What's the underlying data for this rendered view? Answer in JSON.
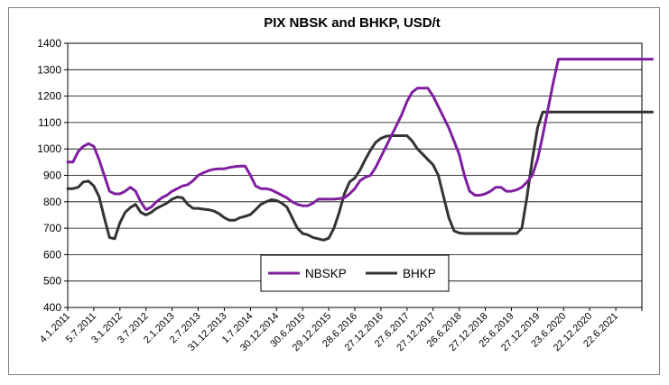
{
  "chart_data": {
    "type": "line",
    "title": "PIX NBSK and BHKP, USD/t",
    "xlabel": "",
    "ylabel": "",
    "ylim": [
      400,
      1400
    ],
    "yticks": [
      400,
      500,
      600,
      700,
      800,
      900,
      1000,
      1100,
      1200,
      1300,
      1400
    ],
    "grid": true,
    "legend_position": "center-left",
    "x_tick_labels": [
      "4.1.2011",
      "5.7.2011",
      "3.1.2012",
      "3.7.2012",
      "2.1.2013",
      "2.7.2013",
      "31.12.2013",
      "1.7.2014",
      "30.12.2014",
      "30.6.2015",
      "29.12.2015",
      "28.6.2016",
      "27.12.2016",
      "27.6.2017",
      "27.12.2017",
      "26.6.2018",
      "27.12.2018",
      "25.6.2019",
      "27.12.2019",
      "23.6.2020",
      "22.12.2020",
      "22.6.2021"
    ],
    "x": [
      0,
      0.2,
      0.4,
      0.6,
      0.8,
      1.0,
      1.2,
      1.4,
      1.6,
      1.8,
      2.0,
      2.2,
      2.4,
      2.6,
      2.8,
      3.0,
      3.2,
      3.4,
      3.6,
      3.8,
      4.0,
      4.2,
      4.4,
      4.6,
      4.8,
      5.0,
      5.2,
      5.4,
      5.6,
      5.8,
      6.0,
      6.2,
      6.4,
      6.6,
      6.8,
      7.0,
      7.2,
      7.4,
      7.6,
      7.8,
      8.0,
      8.2,
      8.4,
      8.6,
      8.8,
      9.0,
      9.2,
      9.4,
      9.6,
      9.8,
      10.0,
      10.2,
      10.4,
      10.6,
      10.8,
      11.0,
      11.2,
      11.4,
      11.6,
      11.8,
      12.0,
      12.2,
      12.4,
      12.6,
      12.8,
      13.0,
      13.2,
      13.4,
      13.6,
      13.8,
      14.0,
      14.2,
      14.4,
      14.6,
      14.8,
      15.0,
      15.2,
      15.4,
      15.6,
      15.8,
      16.0,
      16.2,
      16.4,
      16.6,
      16.8,
      17.0,
      17.2,
      17.4,
      17.6,
      17.8,
      18.0,
      18.2,
      18.4,
      18.6,
      18.8,
      19.0,
      19.2,
      19.4,
      19.6,
      19.8,
      20.0,
      20.2,
      20.4,
      20.6,
      20.8,
      21.0,
      21.2,
      21.4,
      21.6,
      21.8,
      22.0,
      22.2,
      22.4
    ],
    "series": [
      {
        "name": "NBSKP",
        "color": "#7f1fa0",
        "values": [
          950,
          950,
          990,
          1010,
          1020,
          1010,
          960,
          900,
          840,
          830,
          830,
          840,
          855,
          840,
          800,
          770,
          780,
          800,
          815,
          825,
          840,
          850,
          860,
          865,
          880,
          900,
          910,
          918,
          923,
          925,
          925,
          930,
          933,
          935,
          935,
          900,
          860,
          850,
          850,
          845,
          835,
          825,
          815,
          800,
          790,
          785,
          785,
          795,
          810,
          810,
          810,
          810,
          812,
          815,
          830,
          850,
          880,
          893,
          900,
          930,
          970,
          1010,
          1050,
          1090,
          1130,
          1180,
          1215,
          1230,
          1230,
          1230,
          1200,
          1160,
          1120,
          1080,
          1030,
          980,
          900,
          840,
          825,
          825,
          830,
          840,
          855,
          855,
          840,
          840,
          845,
          855,
          875,
          900,
          960,
          1050,
          1150,
          1250,
          1340,
          1340,
          1340,
          1340,
          1340,
          1340,
          1340,
          1340,
          1340,
          1340,
          1340,
          1340,
          1340,
          1340,
          1340,
          1340,
          1340,
          1340,
          1340
        ]
      },
      {
        "name": "BHKP",
        "color": "#333333",
        "values": [
          850,
          850,
          855,
          875,
          878,
          860,
          820,
          740,
          665,
          660,
          720,
          760,
          778,
          790,
          760,
          750,
          760,
          775,
          785,
          795,
          810,
          818,
          815,
          790,
          775,
          775,
          772,
          770,
          765,
          755,
          740,
          730,
          730,
          740,
          745,
          752,
          770,
          790,
          800,
          808,
          805,
          795,
          780,
          740,
          700,
          680,
          675,
          665,
          660,
          655,
          662,
          700,
          760,
          830,
          875,
          890,
          920,
          960,
          995,
          1025,
          1040,
          1048,
          1050,
          1050,
          1050,
          1050,
          1030,
          1000,
          980,
          960,
          940,
          900,
          820,
          740,
          690,
          682,
          680,
          680,
          680,
          680,
          680,
          680,
          680,
          680,
          680,
          680,
          680,
          700,
          820,
          960,
          1080,
          1140,
          1140,
          1140,
          1140,
          1140,
          1140,
          1140,
          1140,
          1140,
          1140,
          1140,
          1140,
          1140,
          1140,
          1140,
          1140,
          1140,
          1140,
          1140,
          1140,
          1140,
          1140
        ]
      }
    ]
  }
}
